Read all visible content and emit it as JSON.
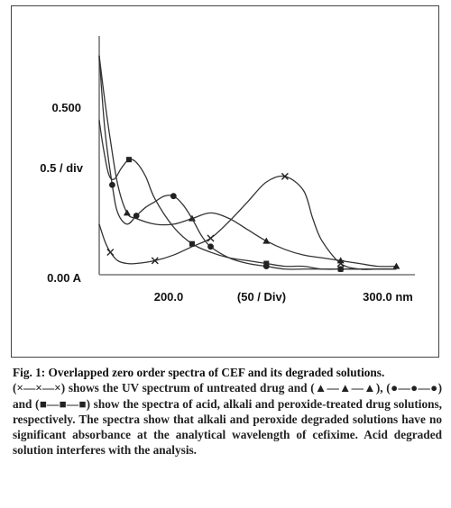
{
  "chart_data": {
    "type": "line",
    "y_tick_labels": [
      "0.500",
      "0.5 / div",
      "0.00 A"
    ],
    "x_tick_labels": [
      "200.0",
      "(50 / Div)",
      "300.0 nm"
    ],
    "xlim": [
      160,
      330
    ],
    "ylim": [
      0,
      0.85
    ],
    "grid": false,
    "series": [
      {
        "marker": "x",
        "x": [
          160,
          163,
          166,
          170,
          175,
          180,
          190,
          200,
          210,
          220,
          230,
          240,
          250,
          260,
          270,
          275,
          280,
          290,
          300,
          310,
          320
        ],
        "y": [
          0.18,
          0.12,
          0.08,
          0.05,
          0.04,
          0.04,
          0.05,
          0.07,
          0.1,
          0.13,
          0.19,
          0.26,
          0.33,
          0.35,
          0.3,
          0.2,
          0.12,
          0.04,
          0.02,
          0.02,
          0.02
        ]
      },
      {
        "marker": "triangle",
        "x": [
          160,
          163,
          166,
          170,
          175,
          180,
          190,
          200,
          210,
          220,
          230,
          240,
          250,
          260,
          270,
          280,
          290,
          300,
          310,
          320
        ],
        "y": [
          0.78,
          0.62,
          0.48,
          0.32,
          0.22,
          0.2,
          0.18,
          0.18,
          0.2,
          0.22,
          0.2,
          0.16,
          0.12,
          0.09,
          0.07,
          0.06,
          0.05,
          0.04,
          0.03,
          0.03
        ]
      },
      {
        "marker": "circle",
        "x": [
          160,
          163,
          167,
          170,
          175,
          180,
          185,
          190,
          195,
          200,
          205,
          210,
          215,
          220,
          230,
          240,
          250,
          260,
          270,
          280,
          290,
          300,
          310,
          320
        ],
        "y": [
          0.78,
          0.52,
          0.32,
          0.22,
          0.18,
          0.21,
          0.24,
          0.26,
          0.28,
          0.28,
          0.25,
          0.2,
          0.14,
          0.1,
          0.06,
          0.04,
          0.03,
          0.02,
          0.02,
          0.02,
          0.02,
          0.02,
          0.02,
          0.02
        ]
      },
      {
        "marker": "square",
        "x": [
          160,
          162,
          165,
          168,
          172,
          176,
          180,
          185,
          190,
          200,
          210,
          220,
          230,
          240,
          250,
          260,
          270,
          280,
          290,
          300,
          310,
          320
        ],
        "y": [
          0.55,
          0.46,
          0.36,
          0.34,
          0.38,
          0.41,
          0.4,
          0.35,
          0.27,
          0.17,
          0.11,
          0.08,
          0.06,
          0.05,
          0.04,
          0.03,
          0.03,
          0.02,
          0.02,
          0.02,
          0.02,
          0.02
        ]
      }
    ]
  },
  "caption": {
    "title": "Fig. 1:  Overlapped zero order spectra of CEF and its degraded solutions.",
    "body": "(×—×—×) shows the UV spectrum of untreated drug and (▲—▲—▲), (●—●—●) and (■—■—■) show the spectra of acid, alkali and peroxide-treated drug solutions, respectively. The spectra show that alkali and peroxide degraded solutions have no significant absorbance at the analytical wavelength of cefixime. Acid degraded solution interferes with the analysis."
  }
}
